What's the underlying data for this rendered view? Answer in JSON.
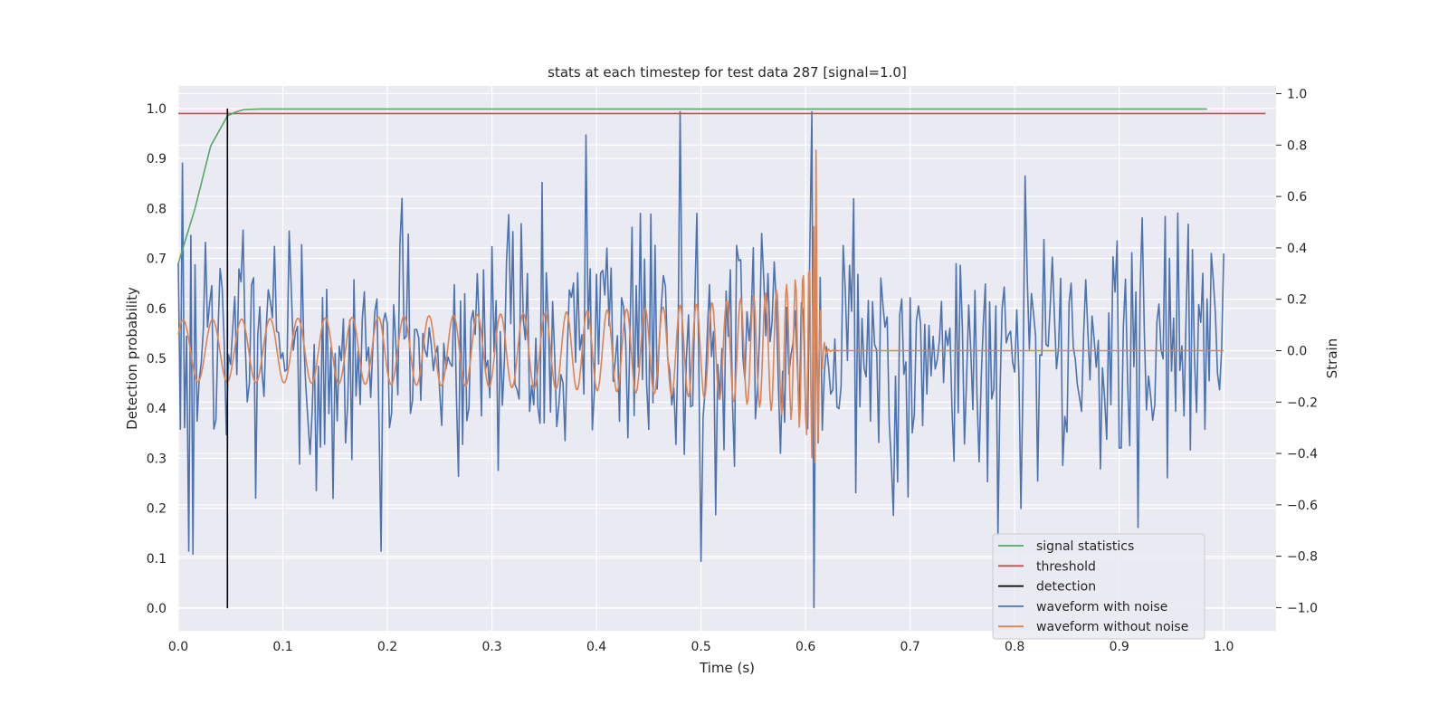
{
  "chart_data": {
    "type": "line",
    "title": "stats at each timestep for test data 287 [signal=1.0]",
    "xlabel": "Time (s)",
    "ylabel_left": "Detection probability",
    "ylabel_right": "Strain",
    "xlim": [
      0.0,
      1.05
    ],
    "ylim_left": [
      -0.045,
      1.045
    ],
    "ylim_right": [
      -1.09,
      1.03
    ],
    "x_ticks": [
      0.0,
      0.1,
      0.2,
      0.3,
      0.4,
      0.5,
      0.6,
      0.7,
      0.8,
      0.9,
      1.0
    ],
    "y_ticks_left": [
      0.0,
      0.1,
      0.2,
      0.3,
      0.4,
      0.5,
      0.6,
      0.7,
      0.8,
      0.9,
      1.0
    ],
    "y_ticks_right": [
      -1.0,
      -0.8,
      -0.6,
      -0.4,
      -0.2,
      0.0,
      0.2,
      0.4,
      0.6,
      0.8,
      1.0
    ],
    "x_tick_labels": [
      "0.0",
      "0.1",
      "0.2",
      "0.3",
      "0.4",
      "0.5",
      "0.6",
      "0.7",
      "0.8",
      "0.9",
      "1.0"
    ],
    "y_tick_labels_left": [
      "0.0",
      "0.1",
      "0.2",
      "0.3",
      "0.4",
      "0.5",
      "0.6",
      "0.7",
      "0.8",
      "0.9",
      "1.0"
    ],
    "y_tick_labels_right": [
      "−1.0",
      "−0.8",
      "−0.6",
      "−0.4",
      "−0.2",
      "0.0",
      "0.2",
      "0.4",
      "0.6",
      "0.8",
      "1.0"
    ],
    "grid": true,
    "legend_position": "lower-right",
    "series": [
      {
        "name": "signal statistics",
        "axis": "left",
        "color": "#55a868",
        "x": [
          0.0,
          0.016,
          0.031,
          0.047,
          0.055,
          0.063,
          0.078,
          0.1,
          0.2,
          0.3,
          0.4,
          0.5,
          0.6,
          0.7,
          0.8,
          0.9,
          0.984
        ],
        "y": [
          0.69,
          0.8,
          0.925,
          0.985,
          0.993,
          0.998,
          0.999,
          0.999,
          0.999,
          0.999,
          0.999,
          0.999,
          0.999,
          0.999,
          0.999,
          0.999,
          0.999
        ]
      },
      {
        "name": "threshold",
        "axis": "left",
        "color": "#c44e52",
        "x": [
          0.0,
          1.04
        ],
        "y": [
          0.99,
          0.99
        ]
      },
      {
        "name": "detection",
        "axis": "left",
        "color": "#000000",
        "x": [
          0.047,
          0.047
        ],
        "y": [
          0.0,
          1.0
        ]
      },
      {
        "name": "waveform with noise",
        "axis": "right",
        "color": "#4c72b0",
        "sample_step": 0.002,
        "x_start": 0.0,
        "x_end": 1.0,
        "features": {
          "std": 0.27,
          "extremes": [
            {
              "x": 0.004,
              "y": 0.73
            },
            {
              "x": 0.011,
              "y": -0.78
            },
            {
              "x": 0.195,
              "y": -0.78
            },
            {
              "x": 0.39,
              "y": 0.84
            },
            {
              "x": 0.5,
              "y": -0.82
            },
            {
              "x": 0.607,
              "y": 0.93
            },
            {
              "x": 0.609,
              "y": -1.0
            },
            {
              "x": 0.785,
              "y": -0.72
            },
            {
              "x": 0.81,
              "y": 0.68
            }
          ]
        }
      },
      {
        "name": "waveform without noise",
        "axis": "right",
        "color": "#dd8452",
        "sample_step": 0.001,
        "x_start": 0.0,
        "x_end": 1.0,
        "features": {
          "initial_amplitude": 0.12,
          "initial_frequency_hz": 35,
          "merger_time": 0.61,
          "peak_amplitude": 0.78,
          "ringdown_end": 0.625
        }
      }
    ]
  }
}
